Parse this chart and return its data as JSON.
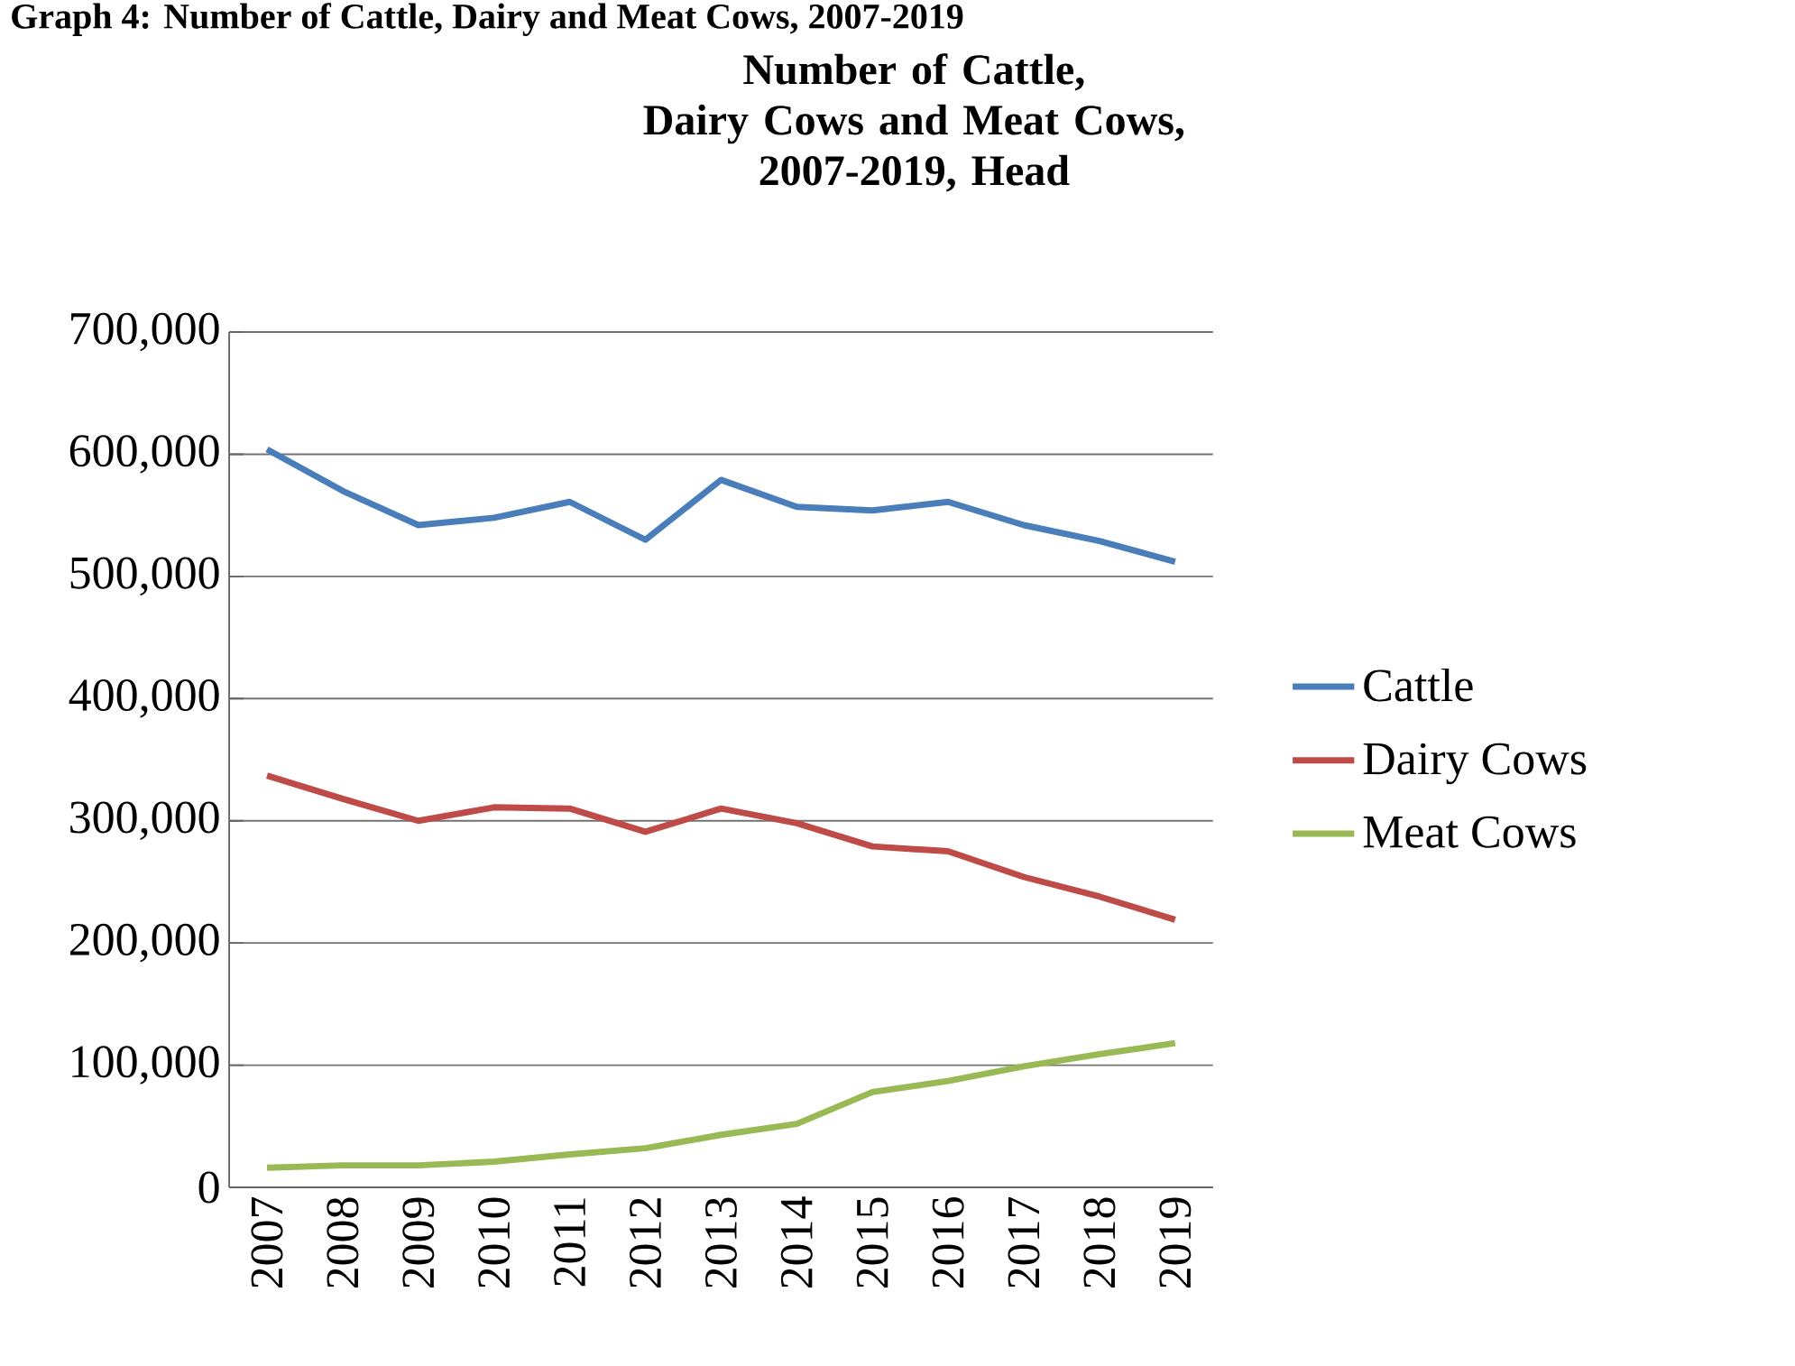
{
  "chart_data": {
    "type": "line",
    "title": "Number of Cattle,\nDairy Cows and Meat Cows,\n2007-2019, Head",
    "annotations": [
      "Graph 4: Number of Cattle, Dairy and Meat Cows, 2007-2019"
    ],
    "categories": [
      "2007",
      "2008",
      "2009",
      "2010",
      "2011",
      "2012",
      "2013",
      "2014",
      "2015",
      "2016",
      "2017",
      "2018",
      "2019"
    ],
    "series": [
      {
        "name": "Cattle",
        "color": "#4a7ebb",
        "values": [
          604000,
          570000,
          542000,
          548000,
          561000,
          530000,
          579000,
          557000,
          554000,
          561000,
          542000,
          529000,
          512000
        ]
      },
      {
        "name": "Dairy Cows",
        "color": "#be4b48",
        "values": [
          337000,
          318000,
          300000,
          311000,
          310000,
          291000,
          310000,
          298000,
          279000,
          275000,
          254000,
          238000,
          219000
        ]
      },
      {
        "name": "Meat Cows",
        "color": "#98b954",
        "values": [
          16000,
          18000,
          18000,
          21000,
          27000,
          32000,
          43000,
          52000,
          78000,
          87000,
          99000,
          109000,
          118000
        ]
      }
    ],
    "ylim": [
      0,
      700000
    ],
    "yticks": [
      {
        "value": 0,
        "label": "0"
      },
      {
        "value": 100000,
        "label": "100,000"
      },
      {
        "value": 200000,
        "label": "200,000"
      },
      {
        "value": 300000,
        "label": "300,000"
      },
      {
        "value": 400000,
        "label": "400,000"
      },
      {
        "value": 500000,
        "label": "500,000"
      },
      {
        "value": 600000,
        "label": "600,000"
      },
      {
        "value": 700000,
        "label": "700,000"
      }
    ],
    "grid": "y",
    "legend": "right",
    "marker": "none",
    "line_style": "solid"
  }
}
